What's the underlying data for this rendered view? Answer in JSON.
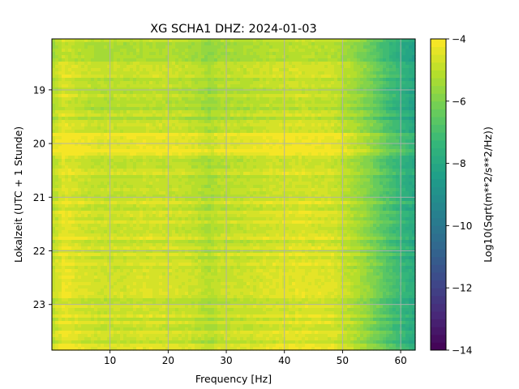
{
  "chart_data": {
    "type": "heatmap",
    "title": "XG SCHA1  DHZ: 2024-01-03",
    "xlabel": "Frequency [Hz]",
    "ylabel": "Lokalzeit (UTC + 1 Stunde)",
    "xlim": [
      0.0,
      62.5
    ],
    "ylim": [
      23.85,
      18.05
    ],
    "y_inverted": true,
    "xticks": [
      10,
      20,
      30,
      40,
      50,
      60
    ],
    "yticks": [
      19,
      20,
      21,
      22,
      23
    ],
    "grid": true,
    "colorbar": {
      "label": "Log10(Sqrt(m**2/s**2/Hz))",
      "range": [
        -14,
        -4
      ],
      "ticks": [
        -14,
        -12,
        -10,
        -8,
        -6,
        -4
      ],
      "colormap": "viridis",
      "levels": 40
    },
    "z_profile_by_frequency": [
      {
        "hz": 0.3,
        "z": -4.9
      },
      {
        "hz": 2,
        "z": -4.3
      },
      {
        "hz": 5,
        "z": -4.6
      },
      {
        "hz": 8,
        "z": -4.8
      },
      {
        "hz": 12,
        "z": -4.75
      },
      {
        "hz": 17,
        "z": -4.65
      },
      {
        "hz": 22,
        "z": -4.75
      },
      {
        "hz": 25,
        "z": -4.9
      },
      {
        "hz": 27,
        "z": -5.2
      },
      {
        "hz": 29,
        "z": -4.9
      },
      {
        "hz": 33,
        "z": -4.8
      },
      {
        "hz": 38,
        "z": -4.6
      },
      {
        "hz": 43,
        "z": -4.5
      },
      {
        "hz": 48,
        "z": -4.6
      },
      {
        "hz": 51,
        "z": -5.0
      },
      {
        "hz": 54,
        "z": -5.6
      },
      {
        "hz": 56,
        "z": -6.2
      },
      {
        "hz": 58,
        "z": -6.8
      },
      {
        "hz": 60,
        "z": -7.3
      },
      {
        "hz": 62.5,
        "z": -7.9
      }
    ],
    "time_offsets": [
      {
        "from": 18.05,
        "to": 19.8,
        "dz": -0.3
      },
      {
        "from": 19.8,
        "to": 20.2,
        "dz": 0.55
      },
      {
        "from": 20.2,
        "to": 23.85,
        "dz": 0.0
      }
    ]
  }
}
